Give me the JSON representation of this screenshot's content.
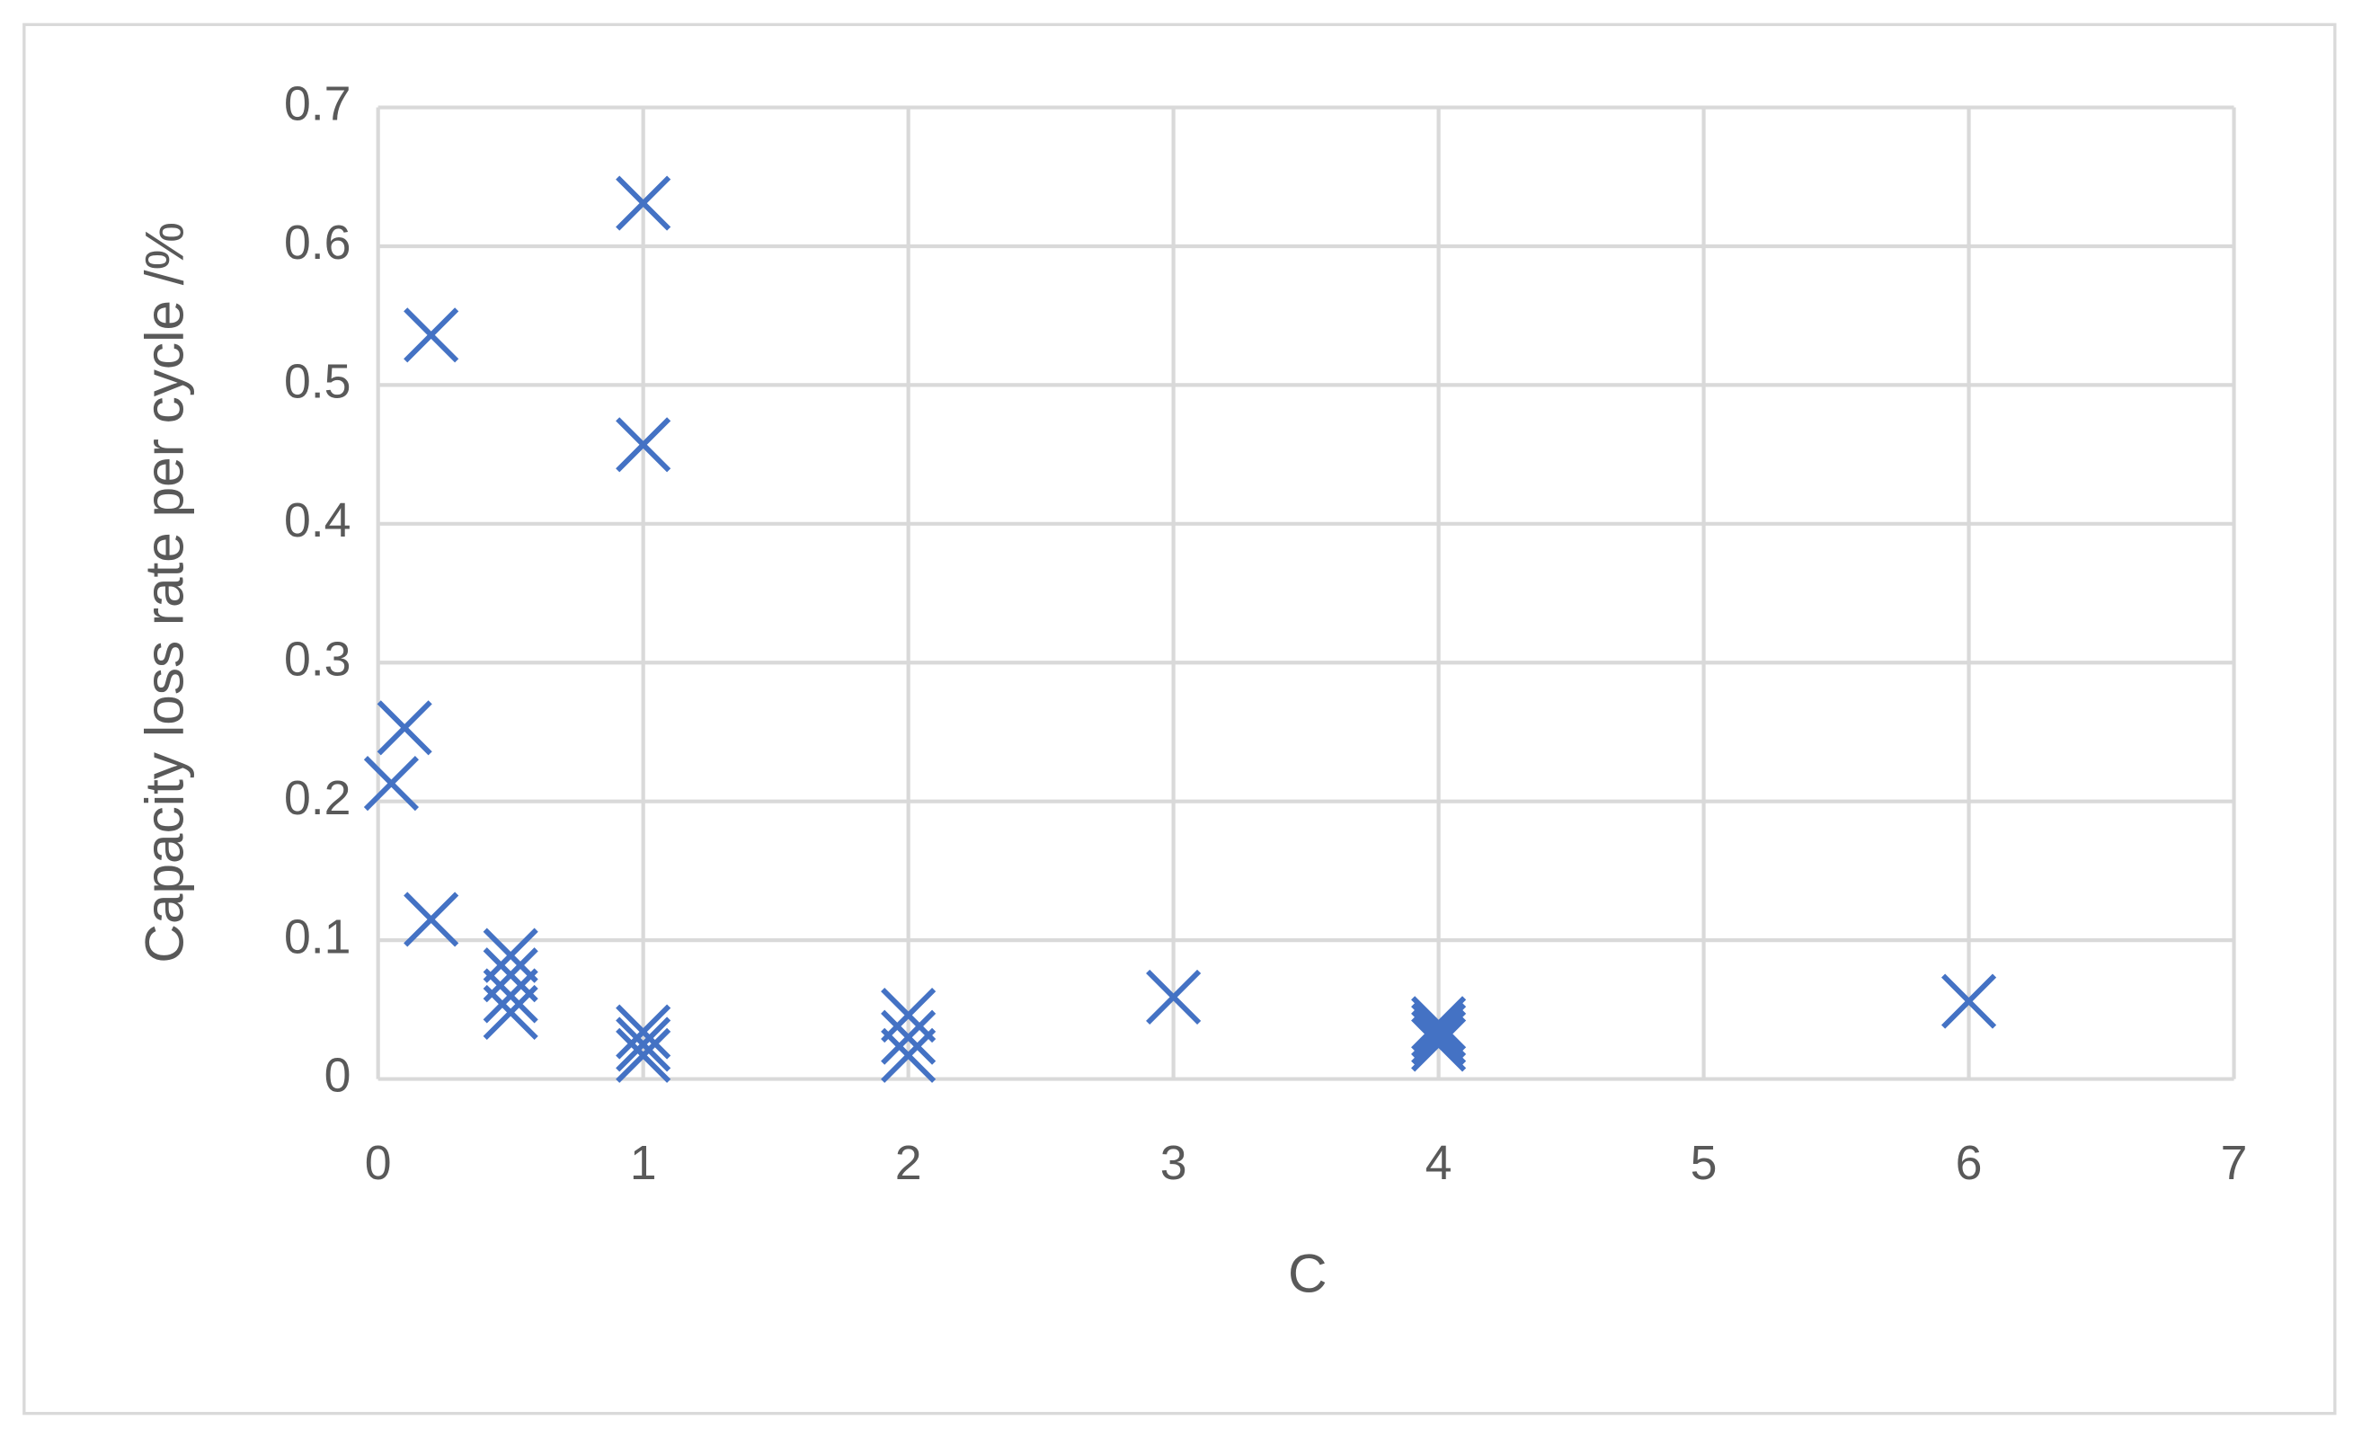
{
  "chart_data": {
    "type": "scatter",
    "xlabel": "C",
    "ylabel": "Capacity loss rate per cycle /%",
    "x": [
      0.05,
      0.1,
      0.2,
      0.2,
      0.5,
      0.5,
      0.5,
      0.5,
      1,
      1,
      1,
      1,
      1,
      2,
      2,
      2,
      3,
      4,
      4,
      4,
      4,
      6
    ],
    "values": [
      0.213,
      0.253,
      0.536,
      0.115,
      0.089,
      0.075,
      0.06,
      0.048,
      0.631,
      0.457,
      0.034,
      0.025,
      0.017,
      0.046,
      0.03,
      0.017,
      0.059,
      0.04,
      0.035,
      0.03,
      0.025,
      0.056
    ],
    "color": "#4472c4",
    "xlim": [
      0,
      7
    ],
    "xticks": [
      0,
      1,
      2,
      3,
      4,
      5,
      6,
      7
    ],
    "ylim": [
      0,
      0.7
    ],
    "yticks": [
      0,
      0.1,
      0.2,
      0.3,
      0.4,
      0.5,
      0.6,
      0.7
    ],
    "grid": true
  }
}
